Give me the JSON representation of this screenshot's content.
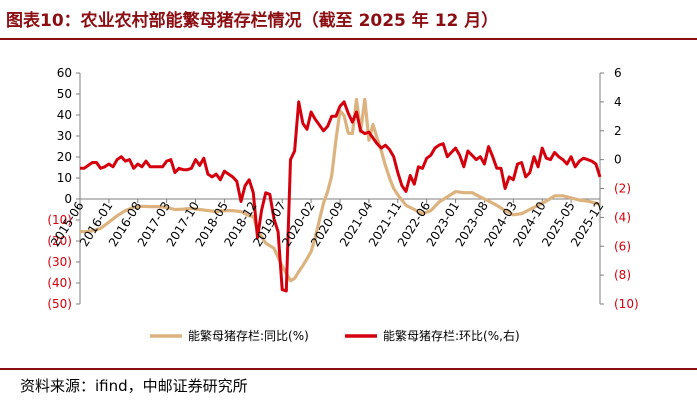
{
  "header": {
    "title": "图表10：农业农村部能繁母猪存栏情况（截至 2025 年 12 月）"
  },
  "footer": {
    "source": "资料来源：ifind，中邮证券研究所"
  },
  "colors": {
    "yoy": "#dcb27e",
    "mom": "#d4000d",
    "negative_tick": "#d4000d",
    "brand": "#8a0e12"
  },
  "chart_data": {
    "type": "line",
    "title": "",
    "x_ticks": [
      "2015-06",
      "2016-01",
      "2016-08",
      "2017-03",
      "2017-10",
      "2018-05",
      "2018-12",
      "2019-07",
      "2020-02",
      "2020-09",
      "2021-04",
      "2021-11",
      "2022-06",
      "2023-01",
      "2023-08",
      "2024-03",
      "2024-10",
      "2025-05",
      "2025-12"
    ],
    "y_left": {
      "ylim": [
        -50,
        60
      ],
      "ticks": [
        "60",
        "50",
        "40",
        "30",
        "20",
        "10",
        "0",
        "(10)",
        "(20)",
        "(30)",
        "(40)",
        "(50)"
      ]
    },
    "y_right": {
      "ylim": [
        -10,
        6
      ],
      "ticks": [
        "6",
        "4",
        "2",
        "0",
        "(2)",
        "(4)",
        "(6)",
        "(8)",
        "(10)"
      ]
    },
    "legend": {
      "position": "bottom"
    },
    "series": [
      {
        "name": "能繁母猪存栏:同比(%)",
        "axis": "left",
        "points": [
          [
            "2015-06",
            -15.4
          ],
          [
            "2015-07",
            -15.6
          ],
          [
            "2015-09",
            -15.2
          ],
          [
            "2015-11",
            -14
          ],
          [
            "2016-01",
            -11
          ],
          [
            "2016-03",
            -8
          ],
          [
            "2016-05",
            -5.5
          ],
          [
            "2016-07",
            -4
          ],
          [
            "2016-09",
            -3.5
          ],
          [
            "2016-11",
            -3.6
          ],
          [
            "2017-01",
            -3.6
          ],
          [
            "2017-03",
            -4
          ],
          [
            "2017-05",
            -5
          ],
          [
            "2017-07",
            -4.8
          ],
          [
            "2017-09",
            -4.5
          ],
          [
            "2017-11",
            -5
          ],
          [
            "2018-01",
            -5.5
          ],
          [
            "2018-03",
            -6
          ],
          [
            "2018-05",
            -5.5
          ],
          [
            "2018-07",
            -5.5
          ],
          [
            "2018-09",
            -6
          ],
          [
            "2018-11",
            -8
          ],
          [
            "2018-12",
            -8.3
          ],
          [
            "2019-01",
            -14.8
          ],
          [
            "2019-03",
            -21
          ],
          [
            "2019-05",
            -23.5
          ],
          [
            "2019-07",
            -32
          ],
          [
            "2019-09",
            -38.9
          ],
          [
            "2019-10",
            -37.8
          ],
          [
            "2019-11",
            -34.6
          ],
          [
            "2019-12",
            -31.7
          ],
          [
            "2020-01",
            -28.5
          ],
          [
            "2020-02",
            -25
          ],
          [
            "2020-03",
            -18.5
          ],
          [
            "2020-04",
            -10
          ],
          [
            "2020-05",
            -2
          ],
          [
            "2020-06",
            3.5
          ],
          [
            "2020-07",
            11
          ],
          [
            "2020-08",
            28
          ],
          [
            "2020-09",
            42
          ],
          [
            "2020-10",
            39.7
          ],
          [
            "2020-11",
            31.3
          ],
          [
            "2020-12",
            31.2
          ],
          [
            "2021-01",
            47.4
          ],
          [
            "2021-02",
            32
          ],
          [
            "2021-03",
            47.5
          ],
          [
            "2021-04",
            28
          ],
          [
            "2021-05",
            35.5
          ],
          [
            "2021-06",
            29
          ],
          [
            "2021-07",
            23
          ],
          [
            "2021-08",
            16
          ],
          [
            "2021-09",
            10
          ],
          [
            "2021-10",
            5
          ],
          [
            "2021-11",
            2
          ],
          [
            "2021-12",
            -0.5
          ],
          [
            "2022-01",
            -3
          ],
          [
            "2022-03",
            -5
          ],
          [
            "2022-05",
            -7
          ],
          [
            "2022-07",
            -5.5
          ],
          [
            "2022-09",
            -1.5
          ],
          [
            "2022-11",
            1
          ],
          [
            "2023-01",
            3.5
          ],
          [
            "2023-03",
            3
          ],
          [
            "2023-05",
            3
          ],
          [
            "2023-07",
            1
          ],
          [
            "2023-09",
            -1
          ],
          [
            "2023-11",
            -3
          ],
          [
            "2024-01",
            -5.5
          ],
          [
            "2024-03",
            -7.5
          ],
          [
            "2024-05",
            -7
          ],
          [
            "2024-07",
            -5
          ],
          [
            "2024-09",
            -3
          ],
          [
            "2024-11",
            -1
          ],
          [
            "2025-01",
            1.5
          ],
          [
            "2025-03",
            1.5
          ],
          [
            "2025-05",
            0.5
          ],
          [
            "2025-07",
            -0.5
          ],
          [
            "2025-09",
            -1
          ],
          [
            "2025-11",
            -2
          ],
          [
            "2025-12",
            -2.5
          ]
        ]
      },
      {
        "name": "能繁母猪存栏:环比(%,右)",
        "axis": "right",
        "points": [
          [
            "2015-06",
            -0.6
          ],
          [
            "2015-07",
            -0.6
          ],
          [
            "2015-08",
            -0.4
          ],
          [
            "2015-09",
            -0.2
          ],
          [
            "2015-10",
            -0.2
          ],
          [
            "2015-11",
            -0.6
          ],
          [
            "2015-12",
            -0.5
          ],
          [
            "2016-01",
            -0.3
          ],
          [
            "2016-02",
            -0.5
          ],
          [
            "2016-03",
            0
          ],
          [
            "2016-04",
            0.2
          ],
          [
            "2016-05",
            -0.1
          ],
          [
            "2016-06",
            0
          ],
          [
            "2016-07",
            -0.6
          ],
          [
            "2016-08",
            -0.3
          ],
          [
            "2016-09",
            -0.5
          ],
          [
            "2016-10",
            -0.1
          ],
          [
            "2016-11",
            -0.5
          ],
          [
            "2016-12",
            -0.5
          ],
          [
            "2017-01",
            -0.5
          ],
          [
            "2017-02",
            -0.5
          ],
          [
            "2017-03",
            -0.1
          ],
          [
            "2017-04",
            0
          ],
          [
            "2017-05",
            -0.9
          ],
          [
            "2017-06",
            -0.6
          ],
          [
            "2017-07",
            -0.7
          ],
          [
            "2017-08",
            -0.7
          ],
          [
            "2017-09",
            -0.6
          ],
          [
            "2017-10",
            0
          ],
          [
            "2017-11",
            -0.4
          ],
          [
            "2017-12",
            0.1
          ],
          [
            "2018-01",
            -1
          ],
          [
            "2018-02",
            -1.2
          ],
          [
            "2018-03",
            -1
          ],
          [
            "2018-04",
            -1.4
          ],
          [
            "2018-05",
            -0.8
          ],
          [
            "2018-06",
            -1
          ],
          [
            "2018-07",
            -1.2
          ],
          [
            "2018-08",
            -1.5
          ],
          [
            "2018-09",
            -2.9
          ],
          [
            "2018-10",
            -1.8
          ],
          [
            "2018-11",
            -1.4
          ],
          [
            "2018-12",
            -2.3
          ],
          [
            "2019-01",
            -5.4
          ],
          [
            "2019-02",
            -3.5
          ],
          [
            "2019-03",
            -2.3
          ],
          [
            "2019-04",
            -2.4
          ],
          [
            "2019-05",
            -4.1
          ],
          [
            "2019-06",
            -5
          ],
          [
            "2019-07",
            -9
          ],
          [
            "2019-08",
            -9.1
          ],
          [
            "2019-09",
            0
          ],
          [
            "2019-10",
            0.6
          ],
          [
            "2019-11",
            4
          ],
          [
            "2019-12",
            2.5
          ],
          [
            "2020-01",
            2.1
          ],
          [
            "2020-02",
            3.3
          ],
          [
            "2020-03",
            2.8
          ],
          [
            "2020-04",
            2.4
          ],
          [
            "2020-05",
            2
          ],
          [
            "2020-06",
            2.3
          ],
          [
            "2020-07",
            3
          ],
          [
            "2020-08",
            3
          ],
          [
            "2020-09",
            3.7
          ],
          [
            "2020-10",
            4
          ],
          [
            "2020-11",
            3.2
          ],
          [
            "2020-12",
            2.6
          ],
          [
            "2021-01",
            3.3
          ],
          [
            "2021-02",
            2
          ],
          [
            "2021-03",
            1.8
          ],
          [
            "2021-04",
            1.9
          ],
          [
            "2021-05",
            1.5
          ],
          [
            "2021-06",
            1.1
          ],
          [
            "2021-07",
            0.8
          ],
          [
            "2021-08",
            1
          ],
          [
            "2021-09",
            0.7
          ],
          [
            "2021-10",
            0.2
          ],
          [
            "2021-11",
            -0.9
          ],
          [
            "2021-12",
            -1.8
          ],
          [
            "2022-01",
            -2.2
          ],
          [
            "2022-02",
            -1.1
          ],
          [
            "2022-03",
            -1.7
          ],
          [
            "2022-04",
            -0.5
          ],
          [
            "2022-05",
            -0.6
          ],
          [
            "2022-06",
            0.1
          ],
          [
            "2022-07",
            0.3
          ],
          [
            "2022-08",
            0.8
          ],
          [
            "2022-09",
            1
          ],
          [
            "2022-10",
            1.1
          ],
          [
            "2022-11",
            0.2
          ],
          [
            "2022-12",
            0.5
          ],
          [
            "2023-01",
            0.8
          ],
          [
            "2023-02",
            0.3
          ],
          [
            "2023-03",
            -0.5
          ],
          [
            "2023-04",
            0.6
          ],
          [
            "2023-05",
            0.3
          ],
          [
            "2023-06",
            0
          ],
          [
            "2023-07",
            0.2
          ],
          [
            "2023-08",
            -0.3
          ],
          [
            "2023-09",
            0.9
          ],
          [
            "2023-10",
            0.2
          ],
          [
            "2023-11",
            -0.6
          ],
          [
            "2023-12",
            -0.6
          ],
          [
            "2024-01",
            -2
          ],
          [
            "2024-02",
            -1.2
          ],
          [
            "2024-03",
            -1.4
          ],
          [
            "2024-04",
            -0.3
          ],
          [
            "2024-05",
            -0.2
          ],
          [
            "2024-06",
            -1.2
          ],
          [
            "2024-07",
            -0.9
          ],
          [
            "2024-08",
            0.2
          ],
          [
            "2024-09",
            -0.5
          ],
          [
            "2024-10",
            0.8
          ],
          [
            "2024-11",
            0.1
          ],
          [
            "2024-12",
            0
          ],
          [
            "2025-01",
            0.5
          ],
          [
            "2025-02",
            0.2
          ],
          [
            "2025-03",
            0
          ],
          [
            "2025-04",
            -0.3
          ],
          [
            "2025-05",
            0.2
          ],
          [
            "2025-06",
            -0.5
          ],
          [
            "2025-07",
            -0.1
          ],
          [
            "2025-08",
            0.1
          ],
          [
            "2025-09",
            0
          ],
          [
            "2025-10",
            -0.1
          ],
          [
            "2025-11",
            -0.3
          ],
          [
            "2025-12",
            -1.2
          ]
        ]
      }
    ]
  }
}
